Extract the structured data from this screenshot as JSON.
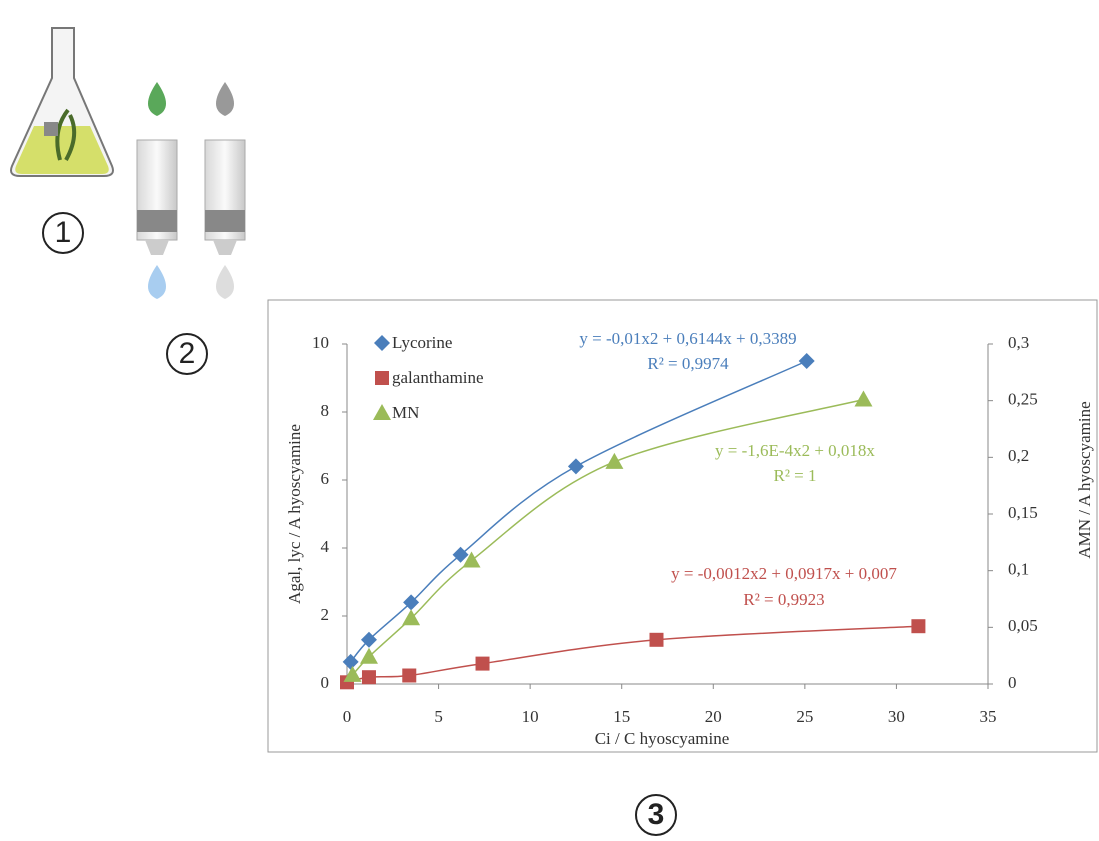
{
  "panel_labels": [
    "1",
    "2",
    "3"
  ],
  "chart_data": {
    "type": "scatter",
    "x_label": "Ci / C hyoscyamine",
    "y_label": "Agal, lyc / A hyoscyamine",
    "y2_label": "AMN / A hyoscyamine",
    "xlim": [
      0,
      35
    ],
    "xticks": [
      0,
      5,
      10,
      15,
      20,
      25,
      30,
      35
    ],
    "ylim": [
      0,
      10
    ],
    "yticks": [
      0,
      2,
      4,
      6,
      8,
      10
    ],
    "y2lim": [
      0,
      0.3
    ],
    "y2ticks": [
      0,
      {
        "value": 0.05,
        "label": "0,05"
      },
      {
        "value": 0.1,
        "label": "0,1"
      },
      {
        "value": 0.15,
        "label": "0,15"
      },
      {
        "value": 0.2,
        "label": "0,2"
      },
      {
        "value": 0.25,
        "label": "0,25"
      },
      {
        "value": 0.3,
        "label": "0,3"
      }
    ],
    "grid": false,
    "legend": "top-left",
    "series": [
      {
        "name": "Lycorine",
        "color": "#4a7ebb",
        "marker": "diamond",
        "x": [
          0.2,
          1.2,
          3.5,
          6.2,
          12.5,
          25.1
        ],
        "values": [
          0.65,
          1.3,
          2.4,
          3.8,
          6.4,
          9.5
        ],
        "equation": "y = -0,01x2 + 0,6144x + 0,3389",
        "r2": "R² = 0,9974"
      },
      {
        "name": "galanthamine",
        "color": "#c0504d",
        "marker": "square",
        "x": [
          0,
          1.2,
          3.4,
          7.4,
          16.9,
          31.2
        ],
        "values": [
          0.05,
          0.2,
          0.25,
          0.6,
          1.3,
          1.7
        ],
        "equation": "y = -0,0012x2 + 0,0917x + 0,007",
        "r2": "R² = 0,9923"
      },
      {
        "name": "MN",
        "color": "#9bbb59",
        "marker": "triangle",
        "axis": "y2",
        "x": [
          0.3,
          1.2,
          3.5,
          6.8,
          14.6,
          28.2
        ],
        "values": [
          0.008,
          0.024,
          0.058,
          0.109,
          0.196,
          0.251
        ],
        "equation": "y = -1,6E-4x2 + 0,018x",
        "r2": "R² = 1"
      }
    ]
  }
}
